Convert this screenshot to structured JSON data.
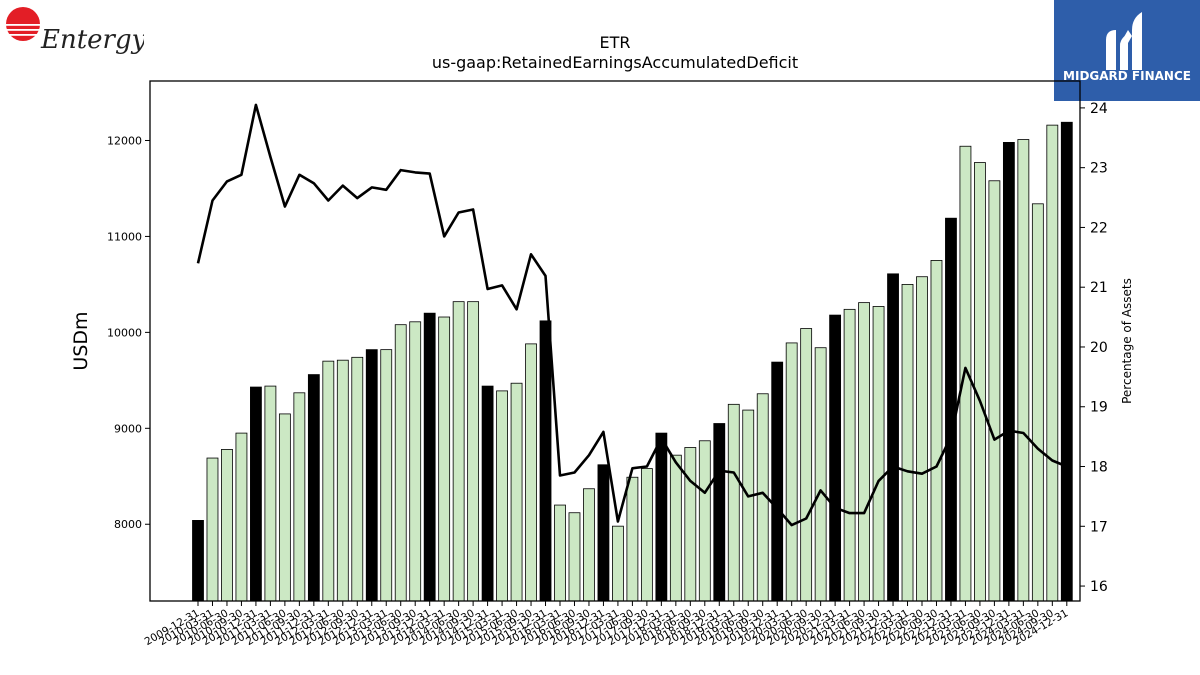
{
  "header": {
    "left_logo_text": "Entergy",
    "right_logo_text": "MIDGARD FINANCE"
  },
  "chart_data": {
    "type": "bar",
    "title": "ETR",
    "subtitle": "us-gaap:RetainedEarningsAccumulatedDeficit",
    "ylabel": "USDm",
    "y2label": "Percentage of Assets",
    "ylim": [
      7200,
      12620
    ],
    "y2lim": [
      15.75,
      24.45
    ],
    "yticks": [
      8000,
      9000,
      10000,
      11000,
      12000
    ],
    "y2ticks": [
      16,
      17,
      18,
      19,
      20,
      21,
      22,
      23,
      24
    ],
    "colors": {
      "annual": "#000000",
      "quarter": "#cce8c4",
      "line": "#000000"
    },
    "categories": [
      "2009-12-31",
      "2010-03-31",
      "2010-06-30",
      "2010-09-30",
      "2010-12-31",
      "2011-03-31",
      "2011-06-30",
      "2011-09-30",
      "2011-12-31",
      "2012-03-31",
      "2012-06-30",
      "2012-09-30",
      "2012-12-31",
      "2013-03-31",
      "2013-06-30",
      "2013-09-30",
      "2013-12-31",
      "2014-03-31",
      "2014-06-30",
      "2014-09-30",
      "2014-12-31",
      "2015-03-31",
      "2015-06-30",
      "2015-09-30",
      "2015-12-31",
      "2016-03-31",
      "2016-06-30",
      "2016-09-30",
      "2016-12-31",
      "2017-03-31",
      "2017-06-30",
      "2017-09-30",
      "2017-12-31",
      "2018-03-31",
      "2018-06-30",
      "2018-09-30",
      "2018-12-31",
      "2019-03-31",
      "2019-06-30",
      "2019-09-30",
      "2019-12-31",
      "2020-03-31",
      "2020-06-30",
      "2020-09-30",
      "2020-12-31",
      "2021-03-31",
      "2021-06-30",
      "2021-09-30",
      "2021-12-31",
      "2022-03-31",
      "2022-06-30",
      "2022-09-30",
      "2022-12-31",
      "2023-03-31",
      "2023-06-30",
      "2023-09-30",
      "2023-12-31",
      "2024-03-31",
      "2024-06-30",
      "2024-09-30",
      "2024-12-31"
    ],
    "annual": [
      true,
      false,
      false,
      false,
      true,
      false,
      false,
      false,
      true,
      false,
      false,
      false,
      true,
      false,
      false,
      false,
      true,
      false,
      false,
      false,
      true,
      false,
      false,
      false,
      true,
      false,
      false,
      false,
      true,
      false,
      false,
      false,
      true,
      false,
      false,
      false,
      true,
      false,
      false,
      false,
      true,
      false,
      false,
      false,
      true,
      false,
      false,
      false,
      true,
      false,
      false,
      false,
      true,
      false,
      false,
      false,
      true,
      false,
      false,
      false,
      true
    ],
    "values": [
      8040,
      8690,
      8780,
      8950,
      9430,
      9440,
      9150,
      9370,
      9560,
      9700,
      9710,
      9740,
      9820,
      9820,
      10080,
      10110,
      10200,
      10160,
      10320,
      10320,
      9440,
      9390,
      9470,
      9880,
      10120,
      8200,
      8120,
      8370,
      8620,
      7980,
      8490,
      8580,
      8950,
      8720,
      8800,
      8870,
      9050,
      9250,
      9190,
      9360,
      9690,
      9890,
      10040,
      9840,
      10180,
      10240,
      10310,
      10270,
      10610,
      10500,
      10580,
      10750,
      11190,
      11940,
      11770,
      11580,
      11980,
      12010,
      11340,
      12160,
      12190
    ],
    "percent_of_assets": [
      21.4,
      22.45,
      22.77,
      22.88,
      24.05,
      23.18,
      22.35,
      22.88,
      22.74,
      22.45,
      22.7,
      22.49,
      22.67,
      22.63,
      22.96,
      22.92,
      22.9,
      21.85,
      22.25,
      22.3,
      20.97,
      21.03,
      20.63,
      21.55,
      21.19,
      17.85,
      17.9,
      18.19,
      18.58,
      17.08,
      17.97,
      18.0,
      18.47,
      18.07,
      17.76,
      17.56,
      17.93,
      17.9,
      17.5,
      17.56,
      17.3,
      17.02,
      17.13,
      17.6,
      17.31,
      17.22,
      17.22,
      17.76,
      18.0,
      17.92,
      17.88,
      18.0,
      18.5,
      19.65,
      19.1,
      18.45,
      18.6,
      18.56,
      18.3,
      18.1,
      18.0
    ]
  }
}
